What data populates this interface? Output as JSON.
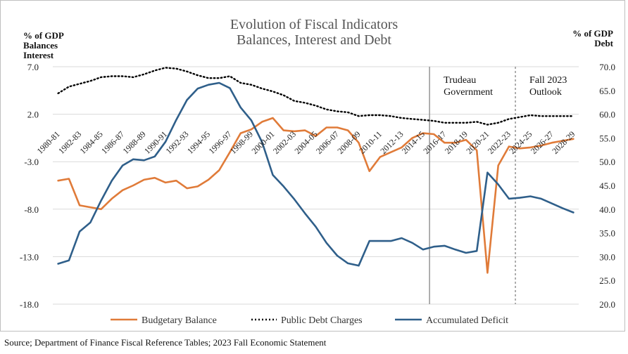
{
  "chart_data": {
    "type": "line",
    "title": "Evolution of Fiscal Indicators",
    "subtitle": "Balances, Interest and Debt",
    "left_axis_label": [
      "% of GDP",
      "Balances",
      "Interest"
    ],
    "right_axis_label": [
      "% of GDP",
      "Debt"
    ],
    "left_ylim": [
      -18,
      7
    ],
    "left_ticks": [
      "7.0",
      "2.0",
      "-3.0",
      "-8.0",
      "-13.0",
      "-18.0"
    ],
    "left_tick_values": [
      7,
      2,
      -3,
      -8,
      -13,
      -18
    ],
    "right_ylim": [
      20,
      70
    ],
    "right_ticks": [
      "70.0",
      "65.0",
      "60.0",
      "55.0",
      "50.0",
      "45.0",
      "40.0",
      "35.0",
      "30.0",
      "25.0",
      "20.0"
    ],
    "right_tick_values": [
      70,
      65,
      60,
      55,
      50,
      45,
      40,
      35,
      30,
      25,
      20
    ],
    "categories": [
      "1980-81",
      "1981-82",
      "1982-83",
      "1983-84",
      "1984-85",
      "1985-86",
      "1986-87",
      "1987-88",
      "1988-89",
      "1989-90",
      "1990-91",
      "1991-92",
      "1992-93",
      "1993-94",
      "1994-95",
      "1995-96",
      "1996-97",
      "1997-98",
      "1998-99",
      "1999-00",
      "2000-01",
      "2001-02",
      "2002-03",
      "2003-04",
      "2004-05",
      "2005-06",
      "2006-07",
      "2007-08",
      "2008-09",
      "2009-10",
      "2010-11",
      "2011-12",
      "2012-13",
      "2013-14",
      "2014-15",
      "2015-16",
      "2016-17",
      "2017-18",
      "2018-19",
      "2019-20",
      "2020-21",
      "2021-22",
      "2022-23",
      "2023-24",
      "2024-25",
      "2025-26",
      "2026-27",
      "2027-28",
      "2028-29"
    ],
    "x_tick_labels": [
      "1980-81",
      "1982-83",
      "1984-85",
      "1986-87",
      "1988-89",
      "1990-91",
      "1992-93",
      "1994-95",
      "1996-97",
      "1998-99",
      "2000-01",
      "2002-03",
      "2004-05",
      "2006-07",
      "2008-09",
      "2010-11",
      "2012-13",
      "2014-15",
      "2016-17",
      "2018-19",
      "2020-21",
      "2022-23",
      "2024-25",
      "2026-27",
      "2028-29"
    ],
    "series": [
      {
        "name": "Budgetary Balance",
        "axis": "left",
        "color": "#E07B39",
        "style": "solid",
        "values": [
          -5.0,
          -4.8,
          -7.6,
          -7.8,
          -8.0,
          -6.9,
          -6.0,
          -5.5,
          -4.9,
          -4.7,
          -5.2,
          -5.0,
          -5.8,
          -5.6,
          -4.9,
          -3.9,
          -2.0,
          0.0,
          0.4,
          1.2,
          1.6,
          0.3,
          0.2,
          0.3,
          -0.3,
          0.6,
          0.6,
          0.3,
          -1.0,
          -4.0,
          -2.5,
          -2.0,
          -1.5,
          -0.5,
          0.0,
          -0.1,
          -1.0,
          -1.0,
          -0.7,
          -1.8,
          -14.7,
          -3.4,
          -1.4,
          -1.6,
          -1.5,
          -1.3,
          -1.0,
          -0.8,
          -0.6
        ]
      },
      {
        "name": "Public Debt Charges",
        "axis": "left",
        "color": "#000000",
        "style": "dotted",
        "values": [
          4.2,
          4.9,
          5.2,
          5.5,
          5.9,
          6.0,
          6.0,
          5.9,
          6.2,
          6.6,
          6.9,
          6.8,
          6.5,
          6.1,
          5.8,
          5.8,
          6.0,
          5.3,
          5.1,
          4.7,
          4.4,
          4.0,
          3.4,
          3.2,
          2.9,
          2.5,
          2.3,
          2.2,
          1.8,
          1.9,
          1.9,
          1.8,
          1.6,
          1.5,
          1.4,
          1.3,
          1.1,
          1.1,
          1.1,
          1.2,
          0.9,
          1.1,
          1.5,
          1.7,
          1.9,
          1.8,
          1.8,
          1.8,
          1.8
        ]
      },
      {
        "name": "Accumulated Deficit",
        "axis": "right",
        "color": "#2F5F8A",
        "style": "solid",
        "values": [
          28.5,
          29.2,
          35.3,
          37.2,
          41.8,
          46.0,
          49.2,
          50.5,
          50.3,
          51.1,
          54.2,
          58.8,
          63.0,
          65.4,
          66.2,
          66.6,
          65.5,
          61.4,
          58.7,
          54.1,
          47.2,
          44.8,
          42.1,
          39.1,
          36.3,
          32.9,
          30.2,
          28.6,
          28.1,
          33.3,
          33.3,
          33.3,
          33.9,
          32.9,
          31.5,
          32.1,
          32.3,
          31.5,
          30.8,
          31.2,
          47.7,
          45.2,
          42.2,
          42.4,
          42.7,
          42.2,
          41.2,
          40.2,
          39.3
        ]
      }
    ],
    "annotations": [
      {
        "category": "2015-16",
        "lines": [
          "Trudeau",
          "Government"
        ],
        "line_style": "solid"
      },
      {
        "category": "2023-24",
        "lines": [
          "Fall 2023",
          "Outlook"
        ],
        "line_style": "dashed"
      }
    ],
    "grid": true,
    "legend_position": "bottom"
  },
  "source": "Source; Department of Finance Fiscal Reference Tables; 2023 Fall Economic Statement"
}
